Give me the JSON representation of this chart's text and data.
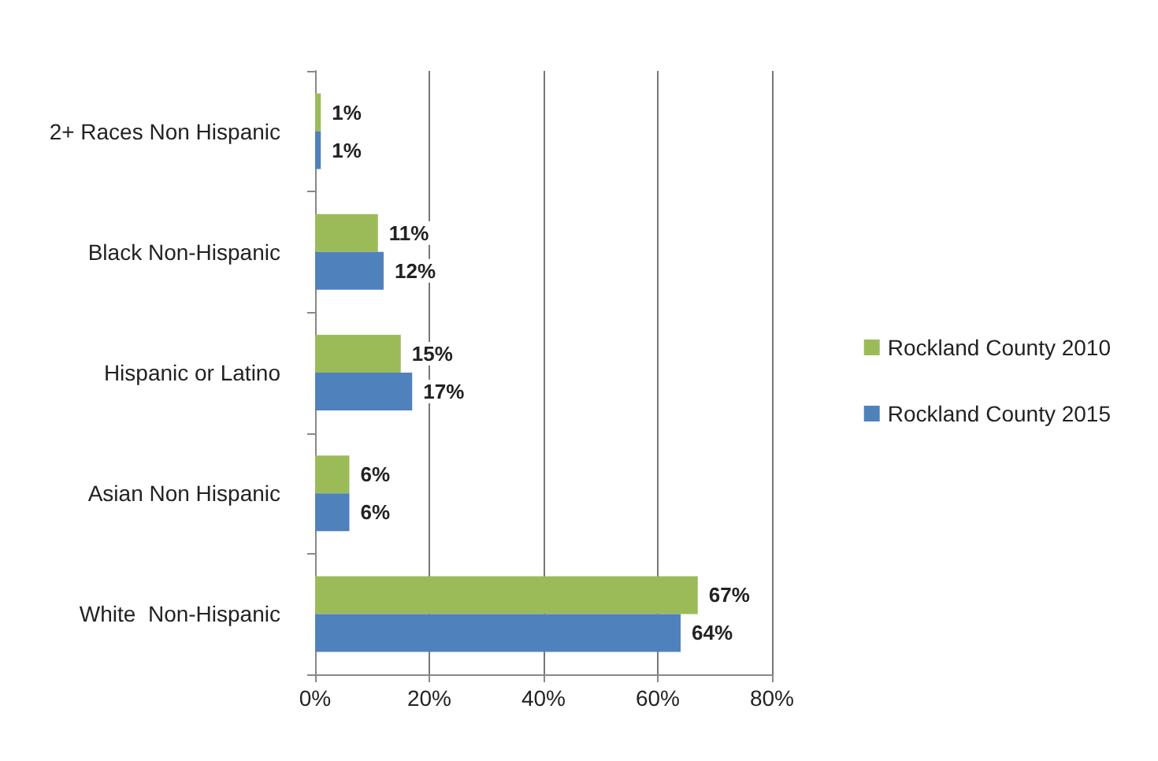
{
  "chart_data": {
    "type": "bar",
    "orientation": "horizontal",
    "categories": [
      "2+ Races Non Hispanic",
      "Black Non-Hispanic",
      "Hispanic or Latino",
      "Asian Non Hispanic",
      "White  Non-Hispanic"
    ],
    "series": [
      {
        "name": "Rockland County 2010",
        "color": "#9bbb59",
        "values": [
          1,
          11,
          15,
          6,
          67
        ],
        "value_labels": [
          "1%",
          "11%",
          "15%",
          "6%",
          "67%"
        ]
      },
      {
        "name": "Rockland County 2015",
        "color": "#4f81bd",
        "values": [
          1,
          12,
          17,
          6,
          64
        ],
        "value_labels": [
          "1%",
          "12%",
          "17%",
          "6%",
          "64%"
        ]
      }
    ],
    "xlim": [
      0,
      80
    ],
    "xticks": [
      {
        "value": 0,
        "label": "0%"
      },
      {
        "value": 20,
        "label": "20%"
      },
      {
        "value": 40,
        "label": "40%"
      },
      {
        "value": 60,
        "label": "60%"
      },
      {
        "value": 80,
        "label": "80%"
      }
    ],
    "grid": "x",
    "legend": "right"
  }
}
